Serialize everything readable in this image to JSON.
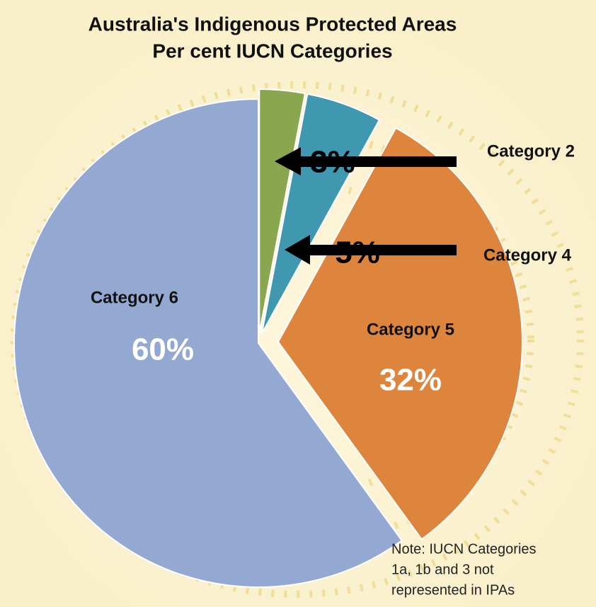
{
  "chart_data": {
    "type": "pie",
    "title": "Australia's Indigenous Protected Areas",
    "subtitle": "Per cent IUCN Categories",
    "categories": [
      "Category 2",
      "Category 4",
      "Category 5",
      "Category 6"
    ],
    "values": [
      3,
      5,
      32,
      60
    ],
    "value_labels": [
      "3%",
      "5%",
      "32%",
      "60%"
    ],
    "colors": [
      "#8aa64f",
      "#3f97b0",
      "#dd843d",
      "#93a9d1"
    ],
    "note": [
      "Note:  IUCN Categories",
      "1a, 1b and 3 not",
      "represented in IPAs"
    ]
  }
}
